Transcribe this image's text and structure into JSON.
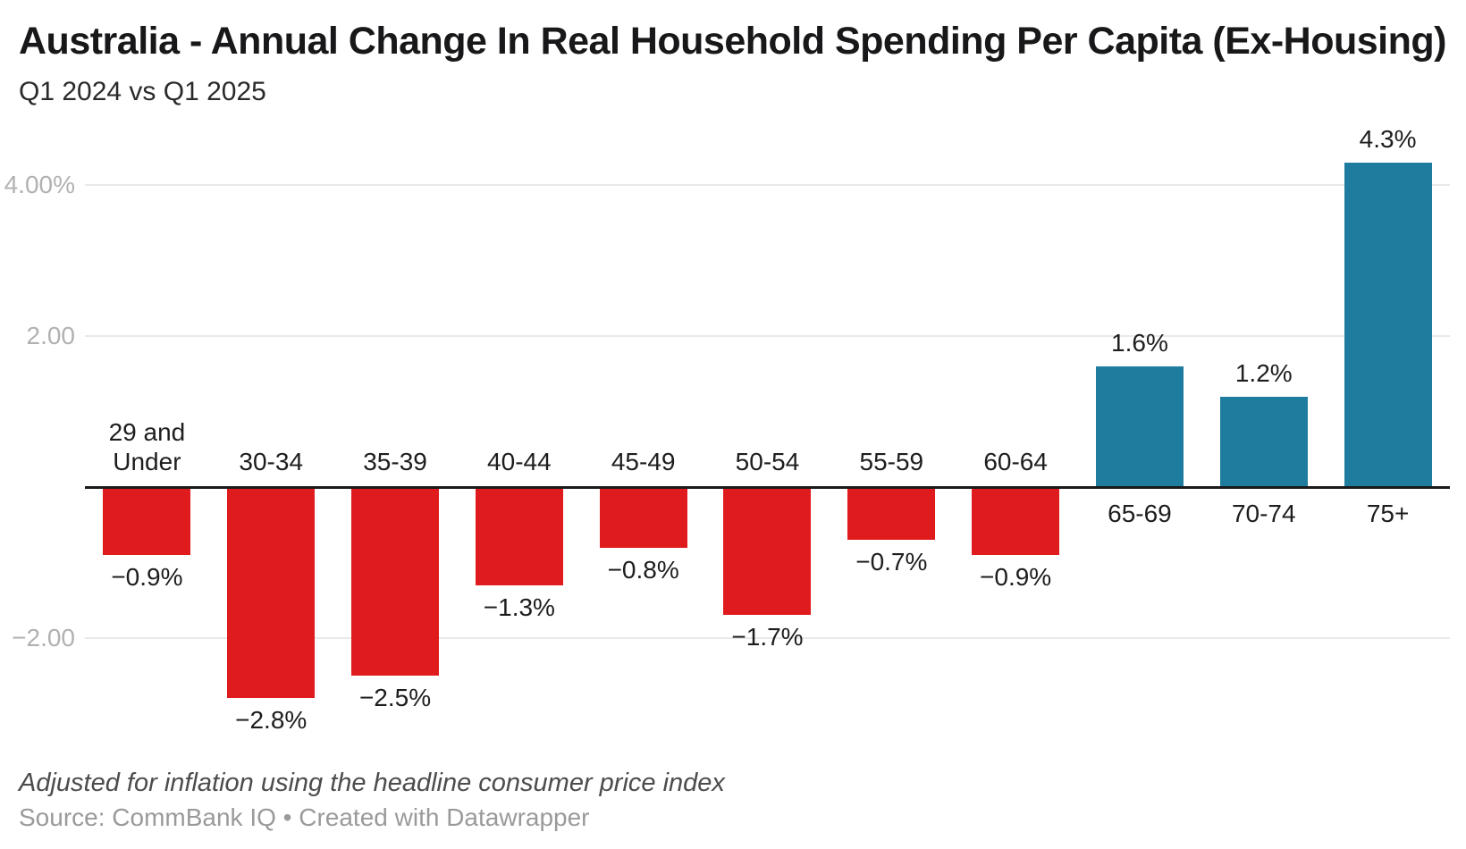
{
  "header": {
    "title": "Australia - Annual Change In Real Household Spending Per Capita (Ex-Housing)",
    "subtitle": "Q1 2024 vs Q1 2025"
  },
  "footer": {
    "note": "Adjusted for inflation using the headline consumer price index",
    "source": "Source: CommBank IQ • Created with Datawrapper"
  },
  "chart_data": {
    "type": "bar",
    "title": "Australia - Annual Change In Real Household Spending Per Capita (Ex-Housing)",
    "subtitle": "Q1 2024 vs Q1 2025",
    "xlabel": "",
    "ylabel": "",
    "categories": [
      "29 and Under",
      "30-34",
      "35-39",
      "40-44",
      "45-49",
      "50-54",
      "55-59",
      "60-64",
      "65-69",
      "70-74",
      "75+"
    ],
    "values": [
      -0.9,
      -2.8,
      -2.5,
      -1.3,
      -0.8,
      -1.7,
      -0.7,
      -0.9,
      1.6,
      1.2,
      4.3
    ],
    "value_labels": [
      "−0.9%",
      "−2.8%",
      "−2.5%",
      "−1.3%",
      "−0.8%",
      "−1.7%",
      "−0.7%",
      "−0.9%",
      "1.6%",
      "1.2%",
      "4.3%"
    ],
    "ylim": [
      -3.2,
      4.8
    ],
    "yticks": [
      {
        "value": 4,
        "label": "4.00%"
      },
      {
        "value": 2,
        "label": "2.00"
      },
      {
        "value": -2,
        "label": "−2.00"
      }
    ],
    "grid": true,
    "legend": false,
    "colors": {
      "positive": "#1e7d9e",
      "negative": "#e01b1e",
      "gridline": "#e9e9e9",
      "baseline": "#1a1a1a",
      "tick_text": "#b1b1b1",
      "label_text": "#1d1d1d"
    }
  }
}
